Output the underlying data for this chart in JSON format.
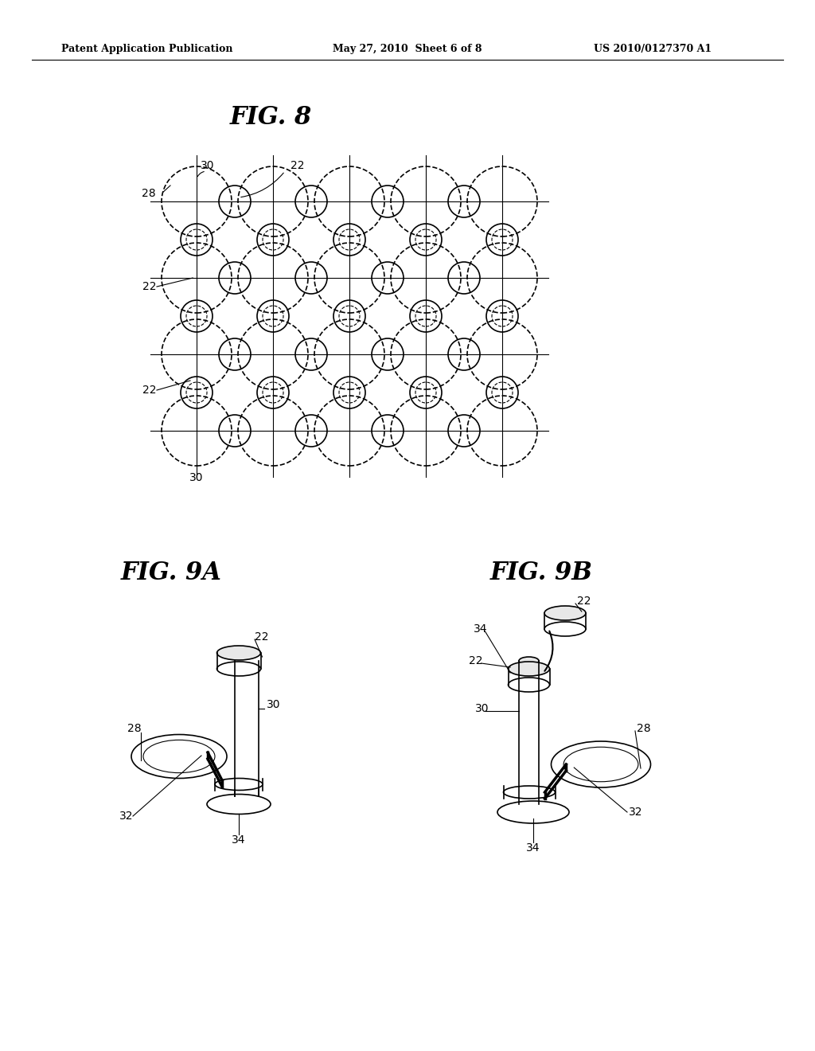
{
  "header_left": "Patent Application Publication",
  "header_mid": "May 27, 2010  Sheet 6 of 8",
  "header_right": "US 2010/0127370 A1",
  "fig8_title": "FIG. 8",
  "fig9a_title": "FIG. 9A",
  "fig9b_title": "FIG. 9B",
  "bg_color": "#ffffff",
  "line_color": "#000000",
  "dashed_color": "#000000"
}
